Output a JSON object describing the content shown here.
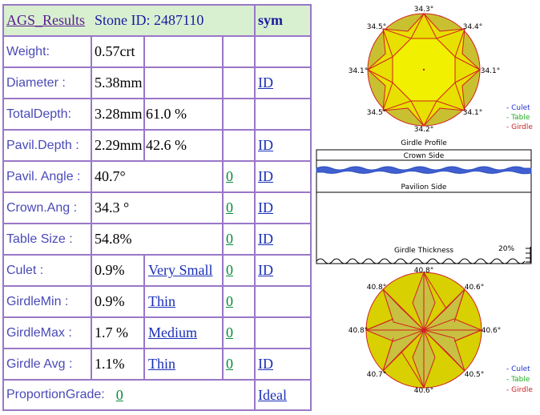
{
  "header": {
    "title": "AGS_Results",
    "stone_id": "Stone ID:  2487110",
    "sym": "sym"
  },
  "rows": [
    {
      "label": "Weight:",
      "value": "0.57crt",
      "extra": "",
      "grade": "",
      "zero": "",
      "id": ""
    },
    {
      "label": "Diameter :",
      "value": "5.38mm",
      "extra": "",
      "grade": "",
      "zero": "",
      "id": "ID"
    },
    {
      "label": "TotalDepth:",
      "value": "3.28mm",
      "extra": "61.0 %",
      "grade": "",
      "zero": "",
      "id": ""
    },
    {
      "label": "Pavil.Depth :",
      "value": "2.29mm",
      "extra": "42.6 %",
      "grade": "",
      "zero": "",
      "id": "ID"
    },
    {
      "label": "Pavil. Angle :",
      "value": "40.7°",
      "extra": "",
      "grade": "",
      "zero": "0",
      "id": "ID "
    },
    {
      "label": "Crown.Ang :",
      "value": "34.3 °",
      "extra": "",
      "grade": "",
      "zero": "0",
      "id": "ID"
    },
    {
      "label": "Table Size :",
      "value": "54.8%",
      "extra": "",
      "grade": "",
      "zero": "0",
      "id": "ID"
    },
    {
      "label": "Culet :",
      "value": "0.9%",
      "extra": "",
      "grade": "Very Small",
      "zero": "0",
      "id": "ID"
    },
    {
      "label": "GirdleMin :",
      "value": "0.9%",
      "extra": "",
      "grade": "Thin",
      "zero": "0",
      "id": ""
    },
    {
      "label": "GirdleMax :",
      "value": "1.7 %",
      "extra": "",
      "grade": "Medium  ",
      "zero": "0",
      "id": ""
    },
    {
      "label": "Girdle Avg :",
      "value": "1.1%",
      "extra": "",
      "grade": "Thin ",
      "zero": "0 ",
      "id": "ID "
    }
  ],
  "proportion": {
    "label": "ProportionGrade:",
    "zero": "0",
    "grade": "Ideal "
  },
  "crown_diagram": {
    "angles": {
      "top": "34.3°",
      "tl": "34.5°",
      "tr": "34.4°",
      "left": "34.1°",
      "right": "34.1°",
      "bl": "34.5°",
      "br": "34.1°",
      "bottom": "34.2°"
    },
    "caption": "Girdle Profile",
    "legend": [
      "- Culet",
      "- Table",
      "- Girdle"
    ],
    "legend_colors": [
      "#2233cc",
      "#22aa22",
      "#cc2222"
    ]
  },
  "girdle_profile": {
    "crown_side": "Crown Side",
    "pavilion_side": "Pavilion Side",
    "thickness_label": "Girdle Thickness",
    "percent": "20%"
  },
  "pavilion_diagram": {
    "angles": {
      "top": "40.8°",
      "tl": "40.8°",
      "tr": "40.6°",
      "left": "40.8°",
      "right": "40.6°",
      "bl": "40.7°",
      "br": "40.5°",
      "bottom": "40.6°"
    },
    "legend": [
      "- Culet",
      "- Table",
      "- Girdle"
    ],
    "legend_colors": [
      "#2233cc",
      "#22aa22",
      "#cc2222"
    ]
  },
  "colors": {
    "border": "#9977c8",
    "gem_fill": "#d8d800",
    "gem_dark": "#b8b030",
    "facet_line": "#d02020"
  }
}
